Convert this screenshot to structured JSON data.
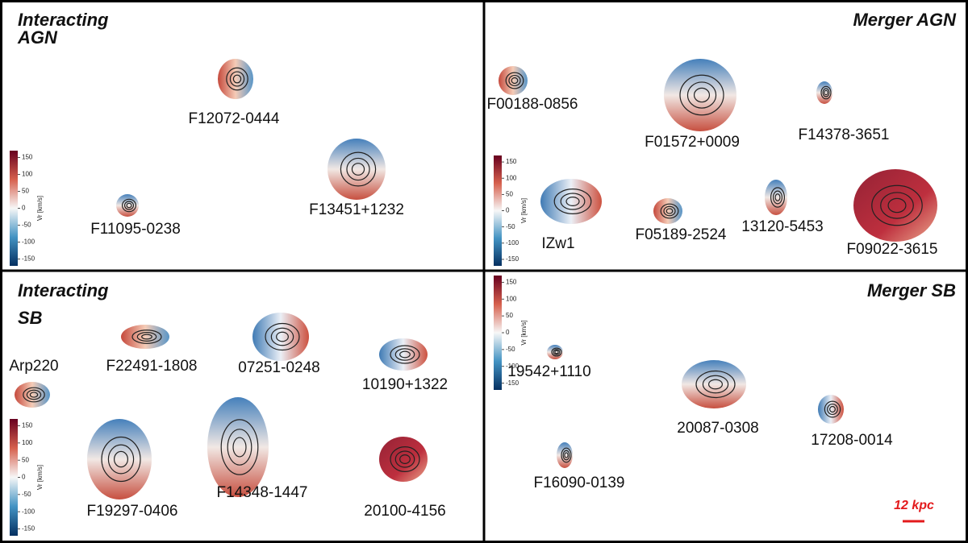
{
  "panels": [
    {
      "title_lines": [
        "Interacting",
        "AGN"
      ],
      "galaxies": [
        "F12072-0444",
        "F11095-0238",
        "F13451+1232"
      ]
    },
    {
      "title_lines": [
        "Merger AGN"
      ],
      "galaxies": [
        "F00188-0856",
        "F01572+0009",
        "F14378-3651",
        "IZw1",
        "F05189-2524",
        "13120-5453",
        "F09022-3615"
      ]
    },
    {
      "title_lines": [
        "Interacting",
        "SB"
      ],
      "galaxies": [
        "Arp220",
        "F22491-1808",
        "07251-0248",
        "10190+1322",
        "F19297-0406",
        "F14348-1447",
        "20100-4156"
      ]
    },
    {
      "title_lines": [
        "Merger SB"
      ],
      "galaxies": [
        "19542+1110",
        "20087-0308",
        "17208-0014",
        "F16090-0139"
      ]
    }
  ],
  "colorbar": {
    "label": "Vr [km/s]",
    "vlim": [
      -170,
      170
    ],
    "ticks": [
      150,
      100,
      50,
      0,
      -50,
      -100,
      -150
    ]
  },
  "scale_bar": "12 kpc"
}
